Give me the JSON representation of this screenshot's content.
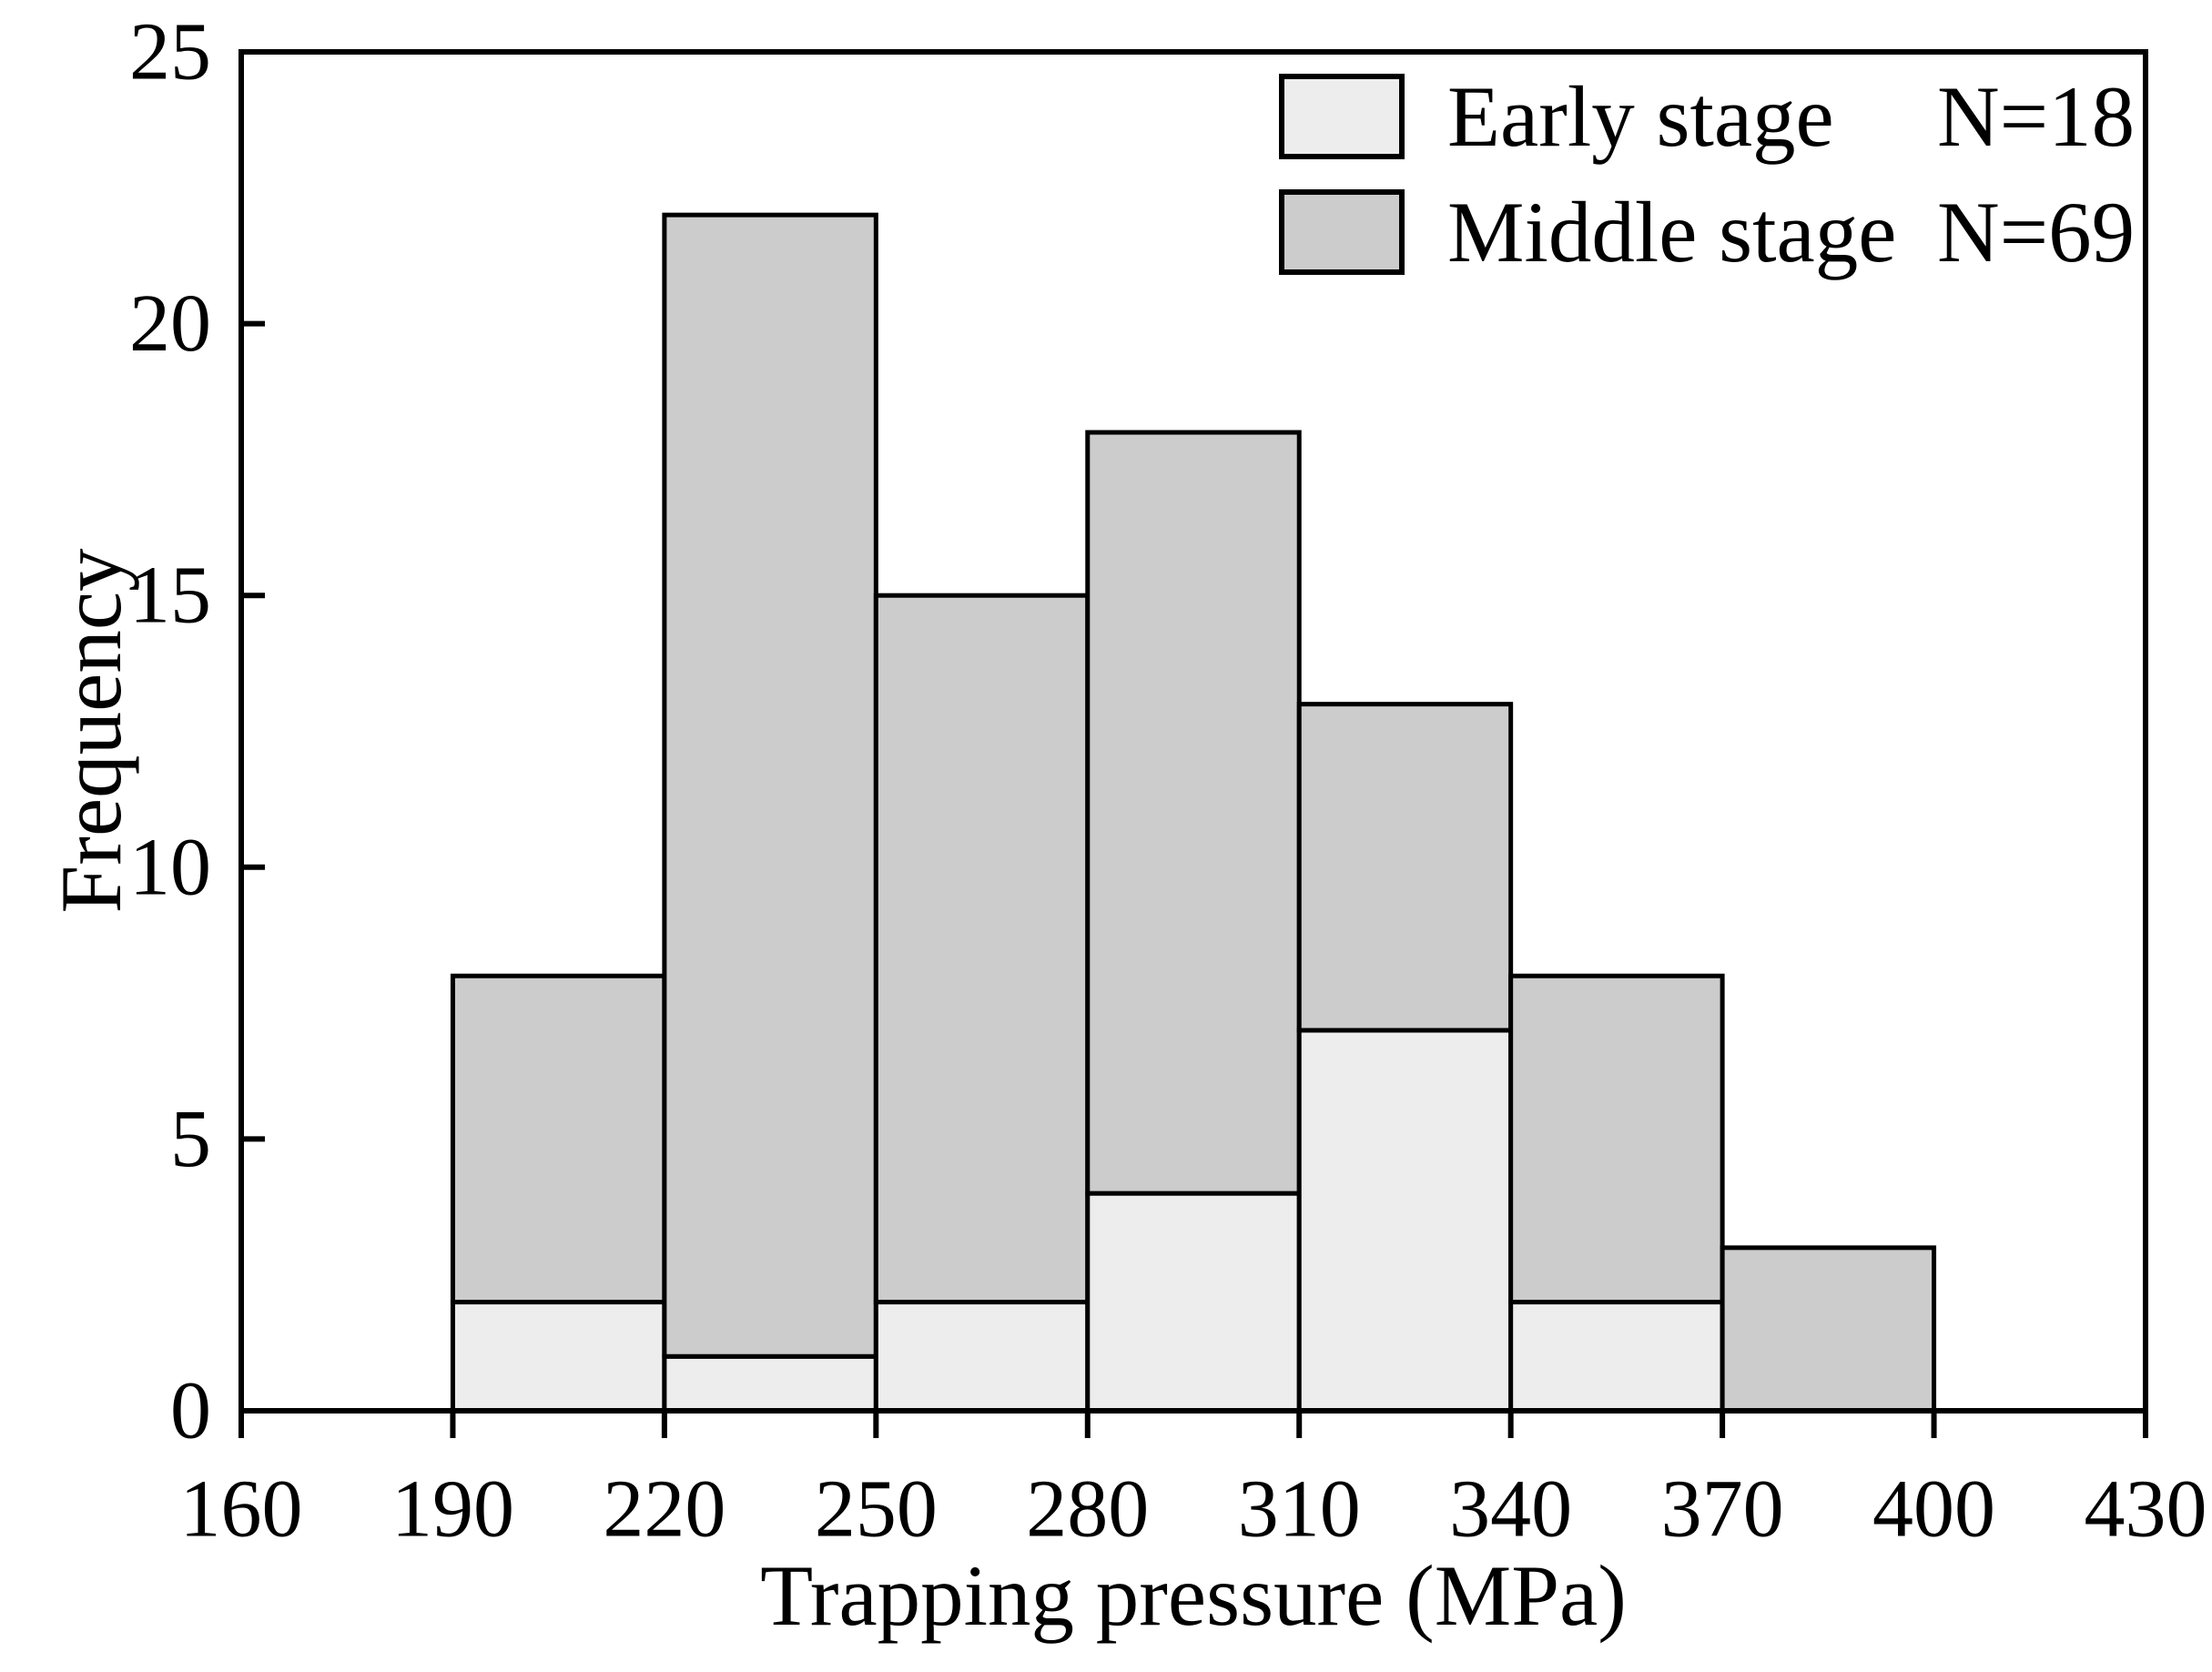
{
  "figure": {
    "background": "#ffffff",
    "axis_color": "#000000"
  },
  "chart_data": {
    "type": "bar",
    "subtype": "stacked-histogram",
    "title": "",
    "xlabel": "Trapping pressure (MPa)",
    "ylabel": "Frequency",
    "xlim": [
      160,
      430
    ],
    "ylim": [
      0,
      25
    ],
    "x_ticks": [
      160,
      190,
      220,
      250,
      280,
      310,
      340,
      370,
      400,
      430
    ],
    "y_ticks": [
      0,
      5,
      10,
      15,
      20,
      25
    ],
    "bin_width": 30,
    "bin_starts": [
      190,
      220,
      250,
      280,
      310,
      340,
      370
    ],
    "grid": false,
    "legend_position": "top-right",
    "series": [
      {
        "name": "Early stage",
        "n_label": "N=18",
        "color": "#ededed",
        "values": [
          2,
          1,
          2,
          4,
          7,
          2,
          0
        ]
      },
      {
        "name": "Middle stage",
        "n_label": "N=69",
        "color": "#cccccc",
        "values": [
          6,
          21,
          13,
          14,
          6,
          6,
          3
        ]
      }
    ],
    "stacked_totals": [
      8,
      22,
      15,
      18,
      13,
      8,
      3
    ]
  }
}
